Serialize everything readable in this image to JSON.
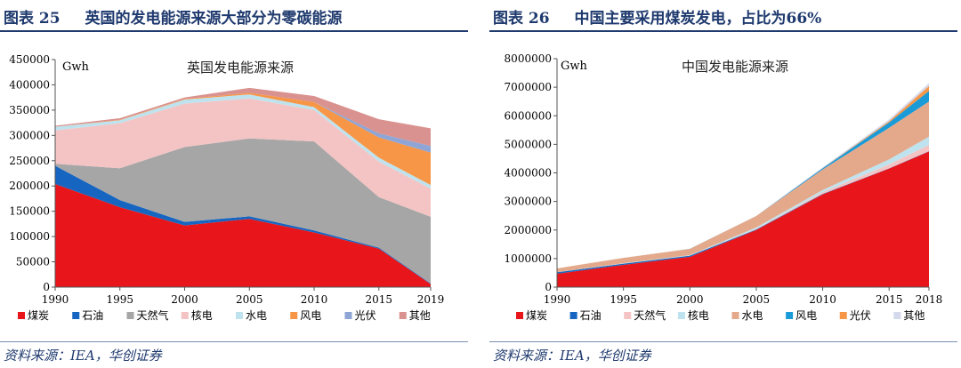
{
  "figures": [
    {
      "figure_label": "图表",
      "figure_number": "25",
      "heading": "英国的发电能源来源大部分为零碳能源",
      "source": "资料来源：IEA，华创证券",
      "chart_data": {
        "type": "area",
        "stacked": true,
        "title": "英国发电能源来源",
        "unit": "Gwh",
        "x": [
          1990,
          1995,
          2000,
          2005,
          2010,
          2015,
          2019
        ],
        "ylim": [
          0,
          450000
        ],
        "yticks": [
          0,
          50000,
          100000,
          150000,
          200000,
          250000,
          300000,
          350000,
          400000,
          450000
        ],
        "series": [
          {
            "name": "煤炭",
            "color": "#e8151b",
            "values": [
              204000,
              158000,
              122000,
              135000,
              108000,
              76000,
              6000
            ]
          },
          {
            "name": "石油",
            "color": "#1665c1",
            "values": [
              36000,
              14000,
              7000,
              5000,
              4000,
              2000,
              1000
            ]
          },
          {
            "name": "天然气",
            "color": "#a6a6a6",
            "values": [
              4000,
              63000,
              148000,
              154000,
              176000,
              100000,
              132000
            ]
          },
          {
            "name": "核电",
            "color": "#f4c4c4",
            "values": [
              66000,
              89000,
              86000,
              79000,
              62000,
              70000,
              56000
            ]
          },
          {
            "name": "水电",
            "color": "#bfe3ee",
            "values": [
              7000,
              6000,
              8000,
              8000,
              6000,
              8000,
              7000
            ]
          },
          {
            "name": "风电",
            "color": "#f79646",
            "values": [
              0,
              1000,
              1000,
              3000,
              10000,
              40000,
              64000
            ]
          },
          {
            "name": "光伏",
            "color": "#8ea5d6",
            "values": [
              0,
              0,
              0,
              0,
              0,
              8000,
              13000
            ]
          },
          {
            "name": "其他",
            "color": "#d9928f",
            "values": [
              2000,
              3000,
              3000,
              10000,
              12000,
              28000,
              35000
            ]
          }
        ]
      }
    },
    {
      "figure_label": "图表",
      "figure_number": "26",
      "heading": "中国主要采用煤炭发电，占比为66%",
      "source": "资料来源：IEA，华创证券",
      "chart_data": {
        "type": "area",
        "stacked": true,
        "title": "中国发电能源来源",
        "unit": "Gwh",
        "x": [
          1990,
          1995,
          2000,
          2005,
          2010,
          2015,
          2018
        ],
        "ylim": [
          0,
          8000000
        ],
        "yticks": [
          0,
          1000000,
          2000000,
          3000000,
          4000000,
          5000000,
          6000000,
          7000000,
          8000000
        ],
        "series": [
          {
            "name": "煤炭",
            "color": "#e8151b",
            "values": [
              470000,
              780000,
              1060000,
              2000000,
              3250000,
              4150000,
              4750000
            ]
          },
          {
            "name": "石油",
            "color": "#1665c1",
            "values": [
              50000,
              40000,
              40000,
              20000,
              15000,
              10000,
              10000
            ]
          },
          {
            "name": "天然气",
            "color": "#f4c4c4",
            "values": [
              5000,
              5000,
              5000,
              20000,
              60000,
              140000,
              220000
            ]
          },
          {
            "name": "核电",
            "color": "#bfe3ee",
            "values": [
              0,
              10000,
              15000,
              50000,
              75000,
              170000,
              290000
            ]
          },
          {
            "name": "水电",
            "color": "#e4a98b",
            "values": [
              130000,
              190000,
              220000,
              400000,
              720000,
              1110000,
              1230000
            ]
          },
          {
            "name": "风电",
            "color": "#1a9bd7",
            "values": [
              0,
              0,
              1000,
              2000,
              45000,
              186000,
              366000
            ]
          },
          {
            "name": "光伏",
            "color": "#f79646",
            "values": [
              0,
              0,
              0,
              0,
              1000,
              45000,
              177000
            ]
          },
          {
            "name": "其他",
            "color": "#d4d9ec",
            "values": [
              1000,
              1000,
              2000,
              5000,
              30000,
              60000,
              100000
            ]
          }
        ]
      }
    }
  ]
}
